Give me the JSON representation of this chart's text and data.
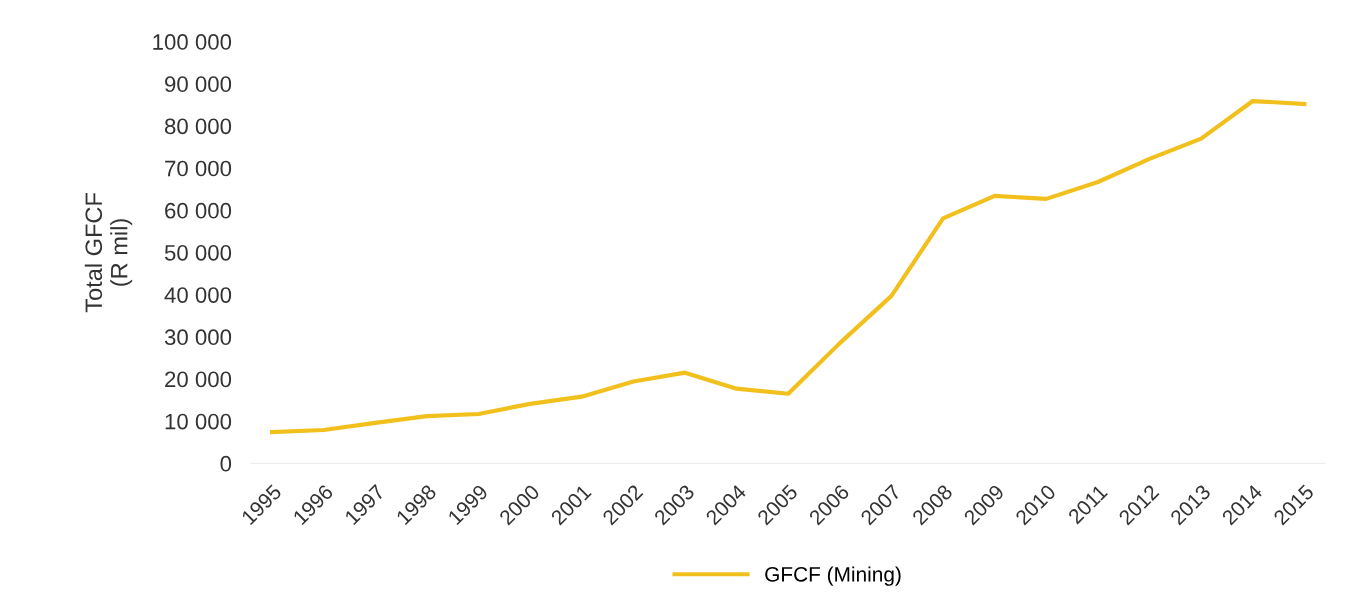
{
  "chart_data": {
    "type": "line",
    "ylabel": "Total GFCF\n(R mil)",
    "categories": [
      "1995",
      "1996",
      "1997",
      "1998",
      "1999",
      "2000",
      "2001",
      "2002",
      "2003",
      "2004",
      "2005",
      "2006",
      "2007",
      "2008",
      "2009",
      "2010",
      "2011",
      "2012",
      "2013",
      "2014",
      "2015"
    ],
    "series": [
      {
        "name": "GFCF (Mining)",
        "color": "#f2c01c",
        "values": [
          7400,
          7900,
          9600,
          11200,
          11700,
          14100,
          15800,
          19400,
          21500,
          17700,
          16500,
          28500,
          39700,
          58100,
          63400,
          62700,
          66700,
          72200,
          77000,
          85900,
          85200
        ]
      }
    ],
    "ylim": [
      0,
      100000
    ],
    "yticks": [
      {
        "value": 0,
        "label": "0"
      },
      {
        "value": 10000,
        "label": "10 000"
      },
      {
        "value": 20000,
        "label": "20 000"
      },
      {
        "value": 30000,
        "label": "30 000"
      },
      {
        "value": 40000,
        "label": "40 000"
      },
      {
        "value": 50000,
        "label": "50 000"
      },
      {
        "value": 60000,
        "label": "60 000"
      },
      {
        "value": 70000,
        "label": "70 000"
      },
      {
        "value": 80000,
        "label": "80 000"
      },
      {
        "value": 90000,
        "label": "90 000"
      },
      {
        "value": 100000,
        "label": "100 000"
      }
    ],
    "grid": false,
    "legend": "bottom",
    "marker": "none",
    "line_style": "solid"
  }
}
